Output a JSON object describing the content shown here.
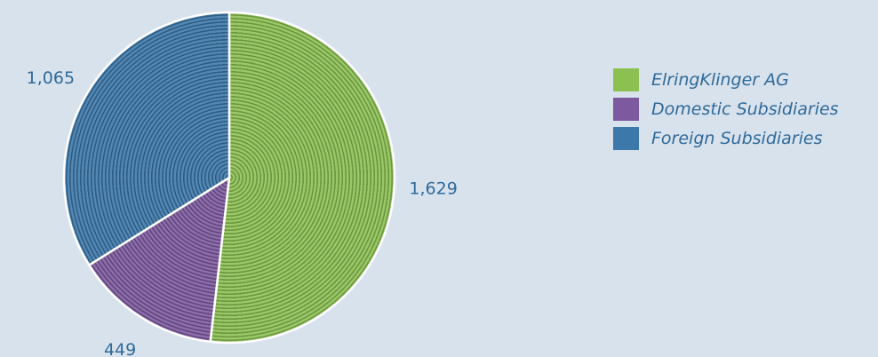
{
  "chart_data": {
    "type": "pie",
    "title": "",
    "slices": [
      {
        "label": "ElringKlinger AG",
        "value": 1629,
        "value_label": "1,629",
        "color": "#8cc152"
      },
      {
        "label": "Domestic Subsidiaries",
        "value": 449,
        "value_label": "449",
        "color": "#7d5aa0"
      },
      {
        "label": "Foreign Subsidiaries",
        "value": 1065,
        "value_label": "1,065",
        "color": "#3c78aa"
      }
    ],
    "legend_position": "right",
    "start_angle": "12 o'clock",
    "direction": "clockwise"
  },
  "colors": {
    "background": "#d8e2ed",
    "text": "#2f6a9a",
    "slice_border": "#ffffff"
  }
}
